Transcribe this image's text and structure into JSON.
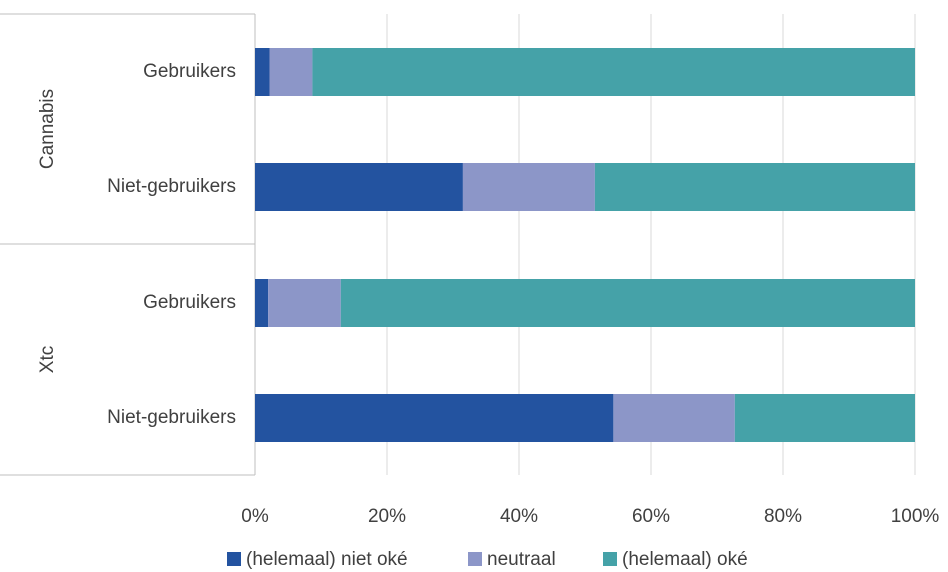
{
  "chart_data": {
    "type": "bar",
    "orientation": "horizontal",
    "stacked": "percent",
    "groups": [
      {
        "name": "Cannabis",
        "categories": [
          {
            "label": "Gebruikers",
            "values": [
              2.2,
              6.5,
              91.3
            ]
          },
          {
            "label": "Niet-gebruikers",
            "values": [
              31.5,
              20.0,
              48.5
            ]
          }
        ]
      },
      {
        "name": "Xtc",
        "categories": [
          {
            "label": "Gebruikers",
            "values": [
              2.0,
              11.0,
              87.0
            ]
          },
          {
            "label": "Niet-gebruikers",
            "values": [
              54.3,
              18.4,
              27.3
            ]
          }
        ]
      }
    ],
    "series": [
      {
        "name": "(helemaal) niet oké",
        "color": "#2353a0"
      },
      {
        "name": "neutraal",
        "color": "#8c96c8"
      },
      {
        "name": "(helemaal) oké",
        "color": "#45a2a8"
      }
    ],
    "x_ticks": [
      "0%",
      "20%",
      "40%",
      "60%",
      "80%",
      "100%"
    ],
    "xlim": [
      0,
      100
    ],
    "grid": "vertical",
    "legend_position": "bottom"
  }
}
